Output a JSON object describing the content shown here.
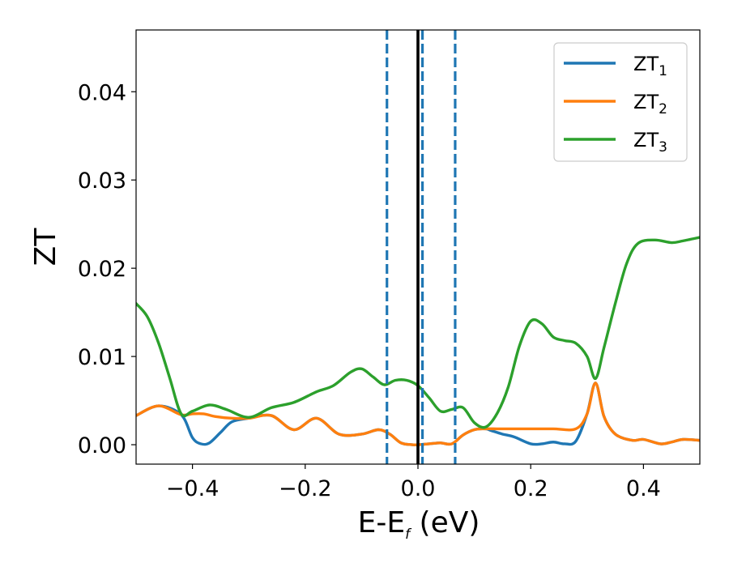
{
  "chart_data": {
    "type": "line",
    "xlabel": "E-E",
    "xlabel_sub": "f",
    "xlabel_unit": " (eV)",
    "ylabel": "ZT",
    "xlim": [
      -0.5,
      0.5
    ],
    "ylim": [
      -0.0022,
      0.047
    ],
    "xticks": [
      -0.4,
      -0.2,
      0.0,
      0.2,
      0.4
    ],
    "xtick_labels": [
      "−0.4",
      "−0.2",
      "0.0",
      "0.2",
      "0.4"
    ],
    "yticks": [
      0.0,
      0.01,
      0.02,
      0.03,
      0.04
    ],
    "ytick_labels": [
      "0.00",
      "0.01",
      "0.02",
      "0.03",
      "0.04"
    ],
    "grid": false,
    "legend_position": "top-right",
    "vertical_lines": [
      {
        "x": 0.0,
        "style": "solid",
        "color": "#000000"
      },
      {
        "x": -0.055,
        "style": "dashed",
        "color": "#1f77b4"
      },
      {
        "x": 0.008,
        "style": "dashed",
        "color": "#1f77b4"
      },
      {
        "x": 0.066,
        "style": "dashed",
        "color": "#1f77b4"
      }
    ],
    "series": [
      {
        "name": "ZT",
        "name_sub": "1",
        "color": "#1f77b4",
        "x": [
          -0.5,
          -0.46,
          -0.42,
          -0.4,
          -0.385,
          -0.37,
          -0.35,
          -0.33,
          -0.3,
          -0.26,
          -0.22,
          -0.18,
          -0.14,
          -0.1,
          -0.07,
          -0.05,
          -0.03,
          -0.01,
          0.0,
          0.02,
          0.04,
          0.06,
          0.08,
          0.1,
          0.12,
          0.13,
          0.15,
          0.17,
          0.2,
          0.22,
          0.24,
          0.26,
          0.28,
          0.3,
          0.315,
          0.33,
          0.35,
          0.38,
          0.4,
          0.43,
          0.45,
          0.47,
          0.5
        ],
        "values": [
          0.0033,
          0.0044,
          0.0034,
          0.0008,
          0.0001,
          0.0002,
          0.0014,
          0.0026,
          0.003,
          0.0033,
          0.0017,
          0.003,
          0.0012,
          0.0012,
          0.0017,
          0.0012,
          0.0002,
          0.0,
          0.0,
          0.0001,
          0.0002,
          0.0001,
          0.0011,
          0.0017,
          0.0018,
          0.0016,
          0.0012,
          0.0009,
          0.0001,
          0.0001,
          0.0003,
          0.0001,
          0.0004,
          0.0035,
          0.007,
          0.0032,
          0.0012,
          0.0005,
          0.0006,
          0.0001,
          0.0003,
          0.0006,
          0.0005
        ]
      },
      {
        "name": "ZT",
        "name_sub": "2",
        "color": "#ff7f0e",
        "x": [
          -0.5,
          -0.46,
          -0.42,
          -0.4,
          -0.38,
          -0.36,
          -0.33,
          -0.3,
          -0.26,
          -0.22,
          -0.18,
          -0.14,
          -0.1,
          -0.07,
          -0.05,
          -0.03,
          -0.01,
          0.0,
          0.02,
          0.04,
          0.06,
          0.08,
          0.1,
          0.12,
          0.14,
          0.16,
          0.2,
          0.24,
          0.28,
          0.3,
          0.315,
          0.33,
          0.35,
          0.38,
          0.4,
          0.43,
          0.45,
          0.47,
          0.5
        ],
        "values": [
          0.0033,
          0.0044,
          0.0034,
          0.0035,
          0.0035,
          0.0032,
          0.003,
          0.003,
          0.0033,
          0.0017,
          0.003,
          0.0012,
          0.0012,
          0.0017,
          0.0012,
          0.0002,
          0.0,
          0.0,
          0.0001,
          0.0002,
          0.0001,
          0.0011,
          0.0017,
          0.0018,
          0.0018,
          0.0018,
          0.0018,
          0.0018,
          0.0018,
          0.0035,
          0.007,
          0.0032,
          0.0012,
          0.0005,
          0.0006,
          0.0001,
          0.0003,
          0.0006,
          0.0005
        ]
      },
      {
        "name": "ZT",
        "name_sub": "3",
        "color": "#2ca02c",
        "x": [
          -0.5,
          -0.48,
          -0.46,
          -0.44,
          -0.42,
          -0.4,
          -0.37,
          -0.34,
          -0.3,
          -0.26,
          -0.22,
          -0.18,
          -0.15,
          -0.12,
          -0.1,
          -0.08,
          -0.06,
          -0.04,
          -0.02,
          0.0,
          0.02,
          0.04,
          0.06,
          0.08,
          0.1,
          0.12,
          0.14,
          0.16,
          0.18,
          0.2,
          0.22,
          0.24,
          0.26,
          0.28,
          0.3,
          0.315,
          0.33,
          0.35,
          0.37,
          0.39,
          0.42,
          0.45,
          0.47,
          0.5
        ],
        "values": [
          0.016,
          0.0145,
          0.0115,
          0.0075,
          0.0035,
          0.0038,
          0.0045,
          0.004,
          0.0031,
          0.0042,
          0.0048,
          0.006,
          0.0067,
          0.0082,
          0.0086,
          0.0077,
          0.0068,
          0.0073,
          0.0073,
          0.0067,
          0.0053,
          0.0038,
          0.004,
          0.0042,
          0.0025,
          0.002,
          0.0035,
          0.0065,
          0.0112,
          0.014,
          0.0137,
          0.0122,
          0.0118,
          0.0115,
          0.01,
          0.0075,
          0.011,
          0.016,
          0.0205,
          0.0228,
          0.0232,
          0.0229,
          0.0231,
          0.0235
        ]
      }
    ]
  }
}
